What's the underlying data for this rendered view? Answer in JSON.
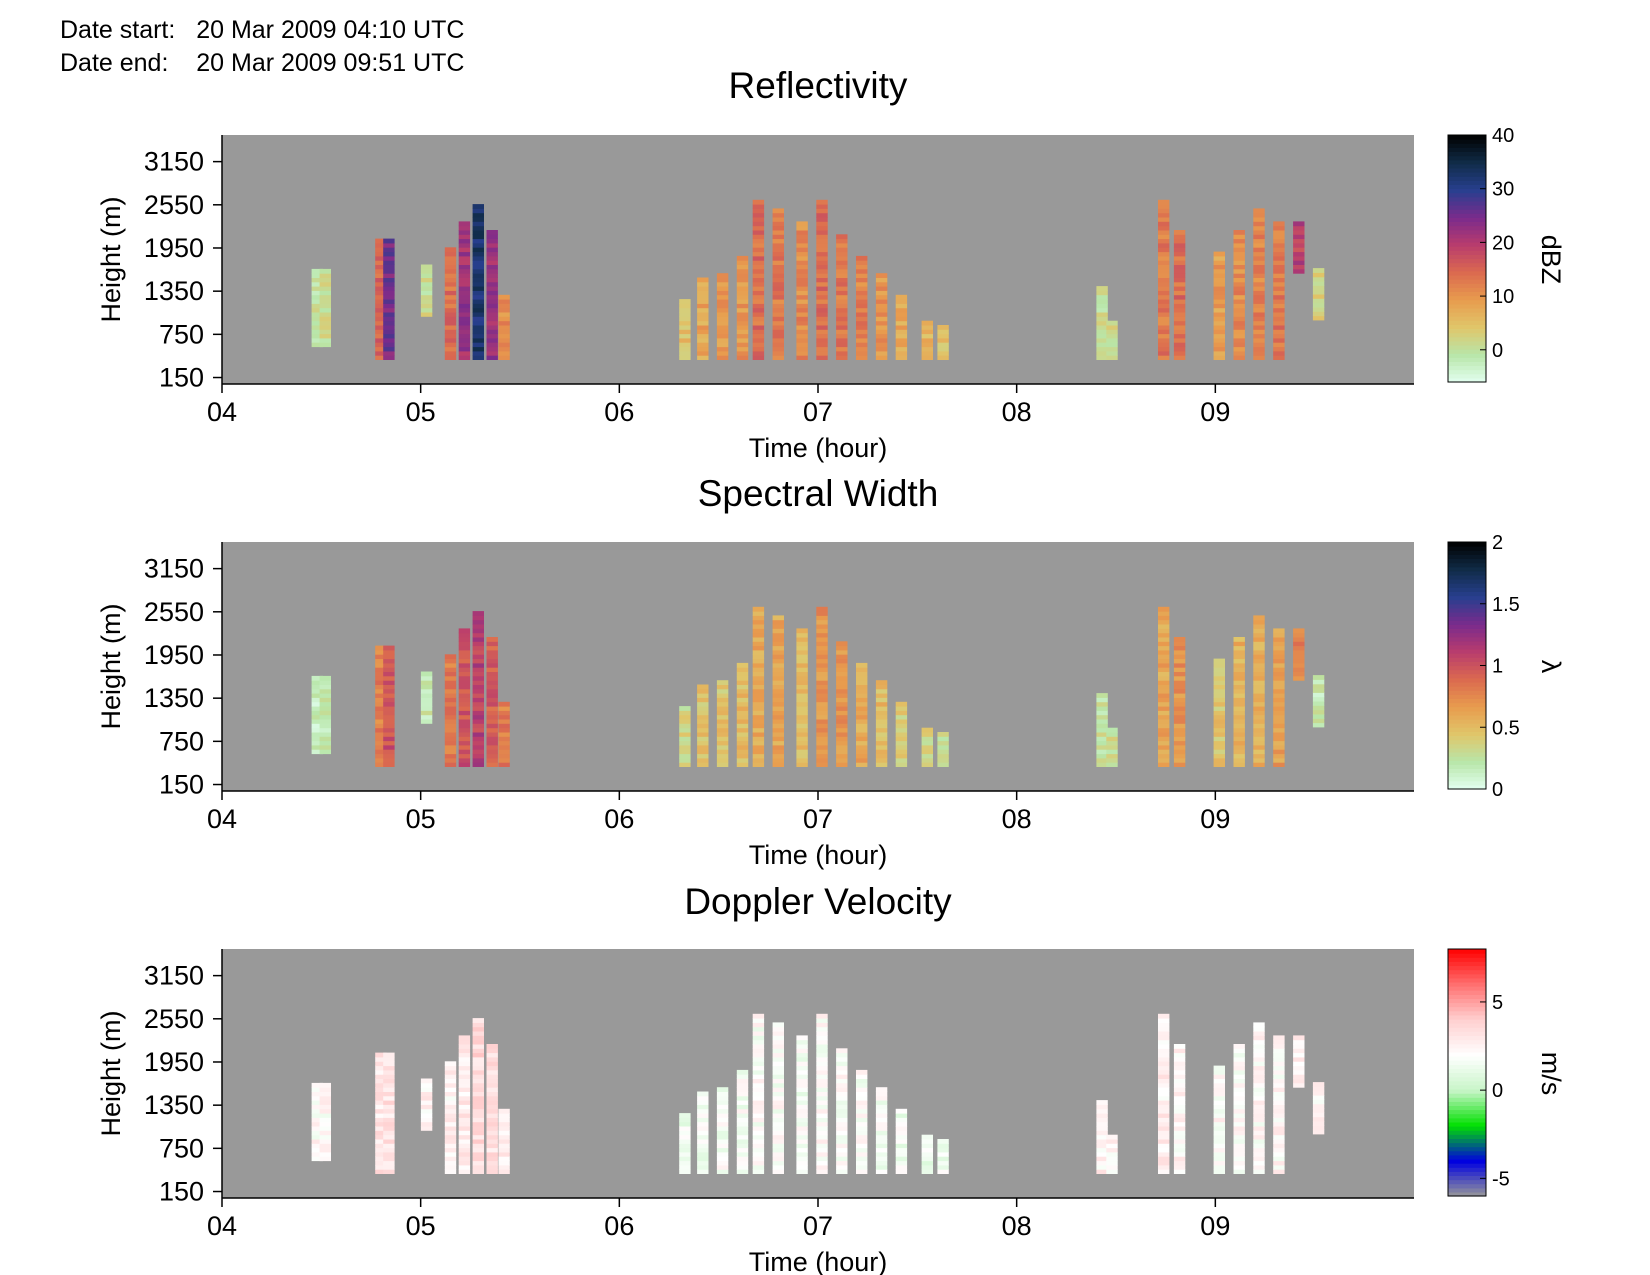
{
  "header": {
    "date_start_label": "Date start:",
    "date_start_value": "20 Mar 2009 04:10 UTC",
    "date_end_label": "Date end:",
    "date_end_value": "20 Mar 2009 09:51 UTC"
  },
  "chart_data": [
    {
      "type": "heatmap",
      "title": "Reflectivity",
      "xlabel": "Time (hour)",
      "ylabel": "Height (m)",
      "x_ticks": [
        "04",
        "05",
        "06",
        "07",
        "08",
        "09"
      ],
      "y_ticks": [
        150,
        750,
        1350,
        1950,
        2550,
        3150
      ],
      "xlim": [
        4.0,
        10.0
      ],
      "ylim": [
        60,
        3520
      ],
      "colorbar": {
        "label": "dBZ",
        "ticks": [
          0,
          10,
          20,
          30,
          40
        ],
        "range": [
          -6,
          40
        ],
        "colors": [
          "#e2fff0",
          "#b8e6a9",
          "#e0c66a",
          "#e89c4e",
          "#db6a4f",
          "#b93c6d",
          "#7a2b8c",
          "#283f8f",
          "#102c48",
          "#000000"
        ]
      },
      "no_data_color": "#999999",
      "echo_columns": [
        {
          "t": 4.48,
          "h": [
            580,
            1650
          ],
          "v": 0
        },
        {
          "t": 4.52,
          "h": [
            580,
            1650
          ],
          "v": 1
        },
        {
          "t": 4.8,
          "h": [
            400,
            2050
          ],
          "v": 15
        },
        {
          "t": 4.84,
          "h": [
            400,
            2050
          ],
          "v": 25
        },
        {
          "t": 5.03,
          "h": [
            1000,
            1680
          ],
          "v": 1
        },
        {
          "t": 5.15,
          "h": [
            400,
            1950
          ],
          "v": 14
        },
        {
          "t": 5.22,
          "h": [
            400,
            2300
          ],
          "v": 22
        },
        {
          "t": 5.29,
          "h": [
            400,
            2550
          ],
          "v": 32
        },
        {
          "t": 5.36,
          "h": [
            400,
            2150
          ],
          "v": 22
        },
        {
          "t": 5.42,
          "h": [
            400,
            1300
          ],
          "v": 11
        },
        {
          "t": 6.33,
          "h": [
            400,
            1200
          ],
          "v": 5
        },
        {
          "t": 6.42,
          "h": [
            400,
            1500
          ],
          "v": 8
        },
        {
          "t": 6.52,
          "h": [
            400,
            1600
          ],
          "v": 9
        },
        {
          "t": 6.62,
          "h": [
            400,
            1800
          ],
          "v": 10
        },
        {
          "t": 6.7,
          "h": [
            400,
            2600
          ],
          "v": 14
        },
        {
          "t": 6.8,
          "h": [
            400,
            2500
          ],
          "v": 13
        },
        {
          "t": 6.92,
          "h": [
            400,
            2300
          ],
          "v": 11
        },
        {
          "t": 7.02,
          "h": [
            400,
            2600
          ],
          "v": 14
        },
        {
          "t": 7.12,
          "h": [
            400,
            2100
          ],
          "v": 13
        },
        {
          "t": 7.22,
          "h": [
            400,
            1800
          ],
          "v": 12
        },
        {
          "t": 7.32,
          "h": [
            400,
            1550
          ],
          "v": 10
        },
        {
          "t": 7.42,
          "h": [
            400,
            1300
          ],
          "v": 8
        },
        {
          "t": 7.55,
          "h": [
            400,
            900
          ],
          "v": 6
        },
        {
          "t": 7.63,
          "h": [
            400,
            850
          ],
          "v": 5
        },
        {
          "t": 8.43,
          "h": [
            400,
            1400
          ],
          "v": 1
        },
        {
          "t": 8.48,
          "h": [
            400,
            900
          ],
          "v": 2
        },
        {
          "t": 8.74,
          "h": [
            400,
            2600
          ],
          "v": 13
        },
        {
          "t": 8.82,
          "h": [
            400,
            2200
          ],
          "v": 14
        },
        {
          "t": 9.02,
          "h": [
            400,
            1900
          ],
          "v": 9
        },
        {
          "t": 9.12,
          "h": [
            400,
            2200
          ],
          "v": 11
        },
        {
          "t": 9.22,
          "h": [
            400,
            2450
          ],
          "v": 12
        },
        {
          "t": 9.32,
          "h": [
            400,
            2300
          ],
          "v": 13
        },
        {
          "t": 9.42,
          "h": [
            1600,
            2300
          ],
          "v": 19
        },
        {
          "t": 9.52,
          "h": [
            950,
            1650
          ],
          "v": 3
        }
      ]
    },
    {
      "type": "heatmap",
      "title": "Spectral Width",
      "xlabel": "Time (hour)",
      "ylabel": "Height (m)",
      "x_ticks": [
        "04",
        "05",
        "06",
        "07",
        "08",
        "09"
      ],
      "y_ticks": [
        150,
        750,
        1350,
        1950,
        2550,
        3150
      ],
      "xlim": [
        4.0,
        10.0
      ],
      "ylim": [
        60,
        3520
      ],
      "colorbar": {
        "label": "λ",
        "ticks": [
          0,
          0.5,
          1,
          1.5,
          2
        ],
        "range": [
          0,
          2
        ],
        "colors": [
          "#e2fff0",
          "#b8e6a9",
          "#e0c66a",
          "#e89c4e",
          "#db6a4f",
          "#b93c6d",
          "#7a2b8c",
          "#283f8f",
          "#102c48",
          "#000000"
        ]
      },
      "no_data_color": "#999999",
      "echo_columns": [
        {
          "t": 4.48,
          "h": [
            580,
            1650
          ],
          "v": 0.15
        },
        {
          "t": 4.52,
          "h": [
            580,
            1650
          ],
          "v": 0.2
        },
        {
          "t": 4.8,
          "h": [
            400,
            2050
          ],
          "v": 0.8
        },
        {
          "t": 4.84,
          "h": [
            400,
            2050
          ],
          "v": 1.0
        },
        {
          "t": 5.03,
          "h": [
            1000,
            1680
          ],
          "v": 0.2
        },
        {
          "t": 5.15,
          "h": [
            400,
            1950
          ],
          "v": 0.8
        },
        {
          "t": 5.22,
          "h": [
            400,
            2300
          ],
          "v": 1.0
        },
        {
          "t": 5.29,
          "h": [
            400,
            2550
          ],
          "v": 1.1
        },
        {
          "t": 5.36,
          "h": [
            400,
            2150
          ],
          "v": 0.95
        },
        {
          "t": 5.42,
          "h": [
            400,
            1300
          ],
          "v": 0.8
        },
        {
          "t": 6.33,
          "h": [
            400,
            1200
          ],
          "v": 0.35
        },
        {
          "t": 6.42,
          "h": [
            400,
            1500
          ],
          "v": 0.45
        },
        {
          "t": 6.52,
          "h": [
            400,
            1600
          ],
          "v": 0.45
        },
        {
          "t": 6.62,
          "h": [
            400,
            1800
          ],
          "v": 0.5
        },
        {
          "t": 6.7,
          "h": [
            400,
            2600
          ],
          "v": 0.6
        },
        {
          "t": 6.8,
          "h": [
            400,
            2500
          ],
          "v": 0.6
        },
        {
          "t": 6.92,
          "h": [
            400,
            2300
          ],
          "v": 0.5
        },
        {
          "t": 7.02,
          "h": [
            400,
            2600
          ],
          "v": 0.7
        },
        {
          "t": 7.12,
          "h": [
            400,
            2100
          ],
          "v": 0.7
        },
        {
          "t": 7.22,
          "h": [
            400,
            1800
          ],
          "v": 0.6
        },
        {
          "t": 7.32,
          "h": [
            400,
            1550
          ],
          "v": 0.5
        },
        {
          "t": 7.42,
          "h": [
            400,
            1300
          ],
          "v": 0.4
        },
        {
          "t": 7.55,
          "h": [
            400,
            900
          ],
          "v": 0.35
        },
        {
          "t": 7.63,
          "h": [
            400,
            850
          ],
          "v": 0.3
        },
        {
          "t": 8.43,
          "h": [
            400,
            1400
          ],
          "v": 0.25
        },
        {
          "t": 8.48,
          "h": [
            400,
            900
          ],
          "v": 0.3
        },
        {
          "t": 8.74,
          "h": [
            400,
            2600
          ],
          "v": 0.6
        },
        {
          "t": 8.82,
          "h": [
            400,
            2200
          ],
          "v": 0.7
        },
        {
          "t": 9.02,
          "h": [
            400,
            1900
          ],
          "v": 0.45
        },
        {
          "t": 9.12,
          "h": [
            400,
            2200
          ],
          "v": 0.55
        },
        {
          "t": 9.22,
          "h": [
            400,
            2450
          ],
          "v": 0.55
        },
        {
          "t": 9.32,
          "h": [
            400,
            2300
          ],
          "v": 0.65
        },
        {
          "t": 9.42,
          "h": [
            1600,
            2300
          ],
          "v": 0.8
        },
        {
          "t": 9.52,
          "h": [
            950,
            1650
          ],
          "v": 0.2
        }
      ]
    },
    {
      "type": "heatmap",
      "title": "Doppler Velocity",
      "xlabel": "Time (hour)",
      "ylabel": "Height (m)",
      "x_ticks": [
        "04",
        "05",
        "06",
        "07",
        "08",
        "09"
      ],
      "y_ticks": [
        150,
        750,
        1350,
        1950,
        2550,
        3150
      ],
      "xlim": [
        4.0,
        10.0
      ],
      "ylim": [
        60,
        3520
      ],
      "colorbar": {
        "label": "m/s",
        "ticks": [
          -5,
          0,
          5
        ],
        "range": [
          -6,
          8
        ],
        "colors": [
          "#999999",
          "#0000e0",
          "#00e000",
          "#c8f5c8",
          "#ffffff",
          "#ffd0d0",
          "#ff7070",
          "#ff0000"
        ]
      },
      "no_data_color": "#999999",
      "echo_columns": [
        {
          "t": 4.48,
          "h": [
            580,
            1650
          ],
          "v": 2.2
        },
        {
          "t": 4.52,
          "h": [
            580,
            1650
          ],
          "v": 2.2
        },
        {
          "t": 4.8,
          "h": [
            400,
            2050
          ],
          "v": 3.0
        },
        {
          "t": 4.84,
          "h": [
            400,
            2050
          ],
          "v": 3.2
        },
        {
          "t": 5.03,
          "h": [
            1000,
            1680
          ],
          "v": 2.5
        },
        {
          "t": 5.15,
          "h": [
            400,
            1950
          ],
          "v": 2.5
        },
        {
          "t": 5.22,
          "h": [
            400,
            2300
          ],
          "v": 2.8
        },
        {
          "t": 5.29,
          "h": [
            400,
            2550
          ],
          "v": 3.5
        },
        {
          "t": 5.36,
          "h": [
            400,
            2150
          ],
          "v": 3.2
        },
        {
          "t": 5.42,
          "h": [
            400,
            1300
          ],
          "v": 2.8
        },
        {
          "t": 6.33,
          "h": [
            400,
            1200
          ],
          "v": 1.6
        },
        {
          "t": 6.42,
          "h": [
            400,
            1500
          ],
          "v": 1.7
        },
        {
          "t": 6.52,
          "h": [
            400,
            1600
          ],
          "v": 1.8
        },
        {
          "t": 6.62,
          "h": [
            400,
            1800
          ],
          "v": 1.8
        },
        {
          "t": 6.7,
          "h": [
            400,
            2600
          ],
          "v": 2.0
        },
        {
          "t": 6.8,
          "h": [
            400,
            2500
          ],
          "v": 2.0
        },
        {
          "t": 6.92,
          "h": [
            400,
            2300
          ],
          "v": 1.8
        },
        {
          "t": 7.02,
          "h": [
            400,
            2600
          ],
          "v": 2.1
        },
        {
          "t": 7.12,
          "h": [
            400,
            2100
          ],
          "v": 2.0
        },
        {
          "t": 7.22,
          "h": [
            400,
            1800
          ],
          "v": 1.9
        },
        {
          "t": 7.32,
          "h": [
            400,
            1550
          ],
          "v": 1.8
        },
        {
          "t": 7.42,
          "h": [
            400,
            1300
          ],
          "v": 1.6
        },
        {
          "t": 7.55,
          "h": [
            400,
            900
          ],
          "v": 1.5
        },
        {
          "t": 7.63,
          "h": [
            400,
            850
          ],
          "v": 1.5
        },
        {
          "t": 8.43,
          "h": [
            400,
            1400
          ],
          "v": 2.5
        },
        {
          "t": 8.48,
          "h": [
            400,
            900
          ],
          "v": 2.5
        },
        {
          "t": 8.74,
          "h": [
            400,
            2600
          ],
          "v": 2.6
        },
        {
          "t": 8.82,
          "h": [
            400,
            2200
          ],
          "v": 2.4
        },
        {
          "t": 9.02,
          "h": [
            400,
            1900
          ],
          "v": 2.2
        },
        {
          "t": 9.12,
          "h": [
            400,
            2200
          ],
          "v": 2.1
        },
        {
          "t": 9.22,
          "h": [
            400,
            2450
          ],
          "v": 2.2
        },
        {
          "t": 9.32,
          "h": [
            400,
            2300
          ],
          "v": 2.3
        },
        {
          "t": 9.42,
          "h": [
            1600,
            2300
          ],
          "v": 2.4
        },
        {
          "t": 9.52,
          "h": [
            950,
            1650
          ],
          "v": 2.2
        }
      ]
    }
  ]
}
